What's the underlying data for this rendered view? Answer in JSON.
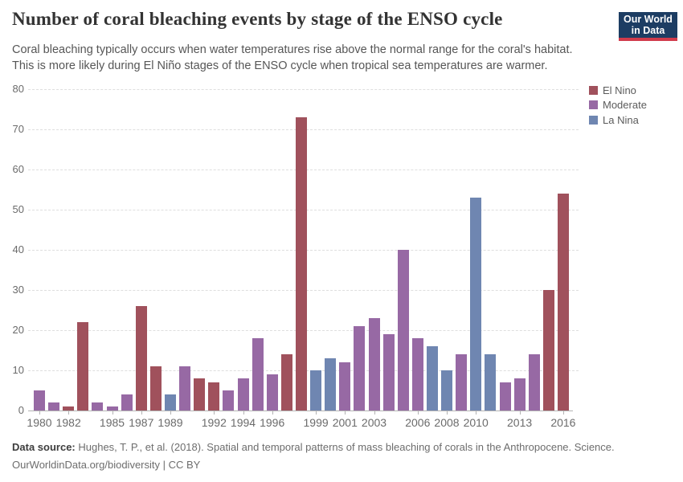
{
  "header": {
    "title": "Number of coral bleaching events by stage of the ENSO cycle",
    "subtitle_line1": "Coral bleaching typically occurs when water temperatures rise above the normal range for the coral's habitat.",
    "subtitle_line2": "This is more likely during El Niño stages of the ENSO cycle when tropical sea temperatures are warmer.",
    "logo": {
      "line1": "Our World",
      "line2": "in Data",
      "bg_color": "#1d3d63",
      "accent_color": "#d13b4b"
    }
  },
  "legend": {
    "items": [
      {
        "label": "El Nino",
        "color": "#a0515c"
      },
      {
        "label": "Moderate",
        "color": "#9769a4"
      },
      {
        "label": "La Nina",
        "color": "#6f86b1"
      }
    ]
  },
  "chart_data": {
    "type": "bar",
    "title": "Number of coral bleaching events by stage of the ENSO cycle",
    "xlabel": "",
    "ylabel": "",
    "ylim": [
      0,
      80
    ],
    "y_ticks": [
      0,
      10,
      20,
      30,
      40,
      50,
      60,
      70,
      80
    ],
    "x_tick_labels": [
      1980,
      1982,
      1985,
      1987,
      1989,
      1992,
      1994,
      1996,
      1999,
      2001,
      2003,
      2006,
      2008,
      2010,
      2013,
      2016
    ],
    "grid": "horizontal-dashed",
    "legend_position": "top-right",
    "series_colors": {
      "El Nino": "#a0515c",
      "Moderate": "#9769a4",
      "La Nina": "#6f86b1"
    },
    "points": [
      {
        "year": 1980,
        "value": 5,
        "series": "Moderate"
      },
      {
        "year": 1981,
        "value": 2,
        "series": "Moderate"
      },
      {
        "year": 1982,
        "value": 1,
        "series": "El Nino"
      },
      {
        "year": 1983,
        "value": 22,
        "series": "El Nino"
      },
      {
        "year": 1984,
        "value": 2,
        "series": "Moderate"
      },
      {
        "year": 1985,
        "value": 1,
        "series": "Moderate"
      },
      {
        "year": 1986,
        "value": 4,
        "series": "Moderate"
      },
      {
        "year": 1987,
        "value": 26,
        "series": "El Nino"
      },
      {
        "year": 1988,
        "value": 11,
        "series": "El Nino"
      },
      {
        "year": 1989,
        "value": 4,
        "series": "La Nina"
      },
      {
        "year": 1990,
        "value": 11,
        "series": "Moderate"
      },
      {
        "year": 1991,
        "value": 8,
        "series": "El Nino"
      },
      {
        "year": 1992,
        "value": 7,
        "series": "El Nino"
      },
      {
        "year": 1993,
        "value": 5,
        "series": "Moderate"
      },
      {
        "year": 1994,
        "value": 8,
        "series": "Moderate"
      },
      {
        "year": 1995,
        "value": 18,
        "series": "Moderate"
      },
      {
        "year": 1996,
        "value": 9,
        "series": "Moderate"
      },
      {
        "year": 1997,
        "value": 14,
        "series": "El Nino"
      },
      {
        "year": 1998,
        "value": 73,
        "series": "El Nino"
      },
      {
        "year": 1999,
        "value": 10,
        "series": "La Nina"
      },
      {
        "year": 2000,
        "value": 13,
        "series": "La Nina"
      },
      {
        "year": 2001,
        "value": 12,
        "series": "Moderate"
      },
      {
        "year": 2002,
        "value": 21,
        "series": "Moderate"
      },
      {
        "year": 2003,
        "value": 23,
        "series": "Moderate"
      },
      {
        "year": 2004,
        "value": 19,
        "series": "Moderate"
      },
      {
        "year": 2005,
        "value": 40,
        "series": "Moderate"
      },
      {
        "year": 2006,
        "value": 18,
        "series": "Moderate"
      },
      {
        "year": 2007,
        "value": 16,
        "series": "La Nina"
      },
      {
        "year": 2008,
        "value": 10,
        "series": "La Nina"
      },
      {
        "year": 2009,
        "value": 14,
        "series": "Moderate"
      },
      {
        "year": 2010,
        "value": 53,
        "series": "La Nina"
      },
      {
        "year": 2011,
        "value": 14,
        "series": "La Nina"
      },
      {
        "year": 2012,
        "value": 7,
        "series": "Moderate"
      },
      {
        "year": 2013,
        "value": 8,
        "series": "Moderate"
      },
      {
        "year": 2014,
        "value": 14,
        "series": "Moderate"
      },
      {
        "year": 2015,
        "value": 30,
        "series": "El Nino"
      },
      {
        "year": 2016,
        "value": 54,
        "series": "El Nino"
      }
    ]
  },
  "footer": {
    "source_label": "Data source:",
    "source_text": " Hughes, T. P., et al. (2018). Spatial and temporal patterns of mass bleaching of corals in the Anthropocene. Science.",
    "license_line": "OurWorldinData.org/biodiversity | CC BY"
  }
}
